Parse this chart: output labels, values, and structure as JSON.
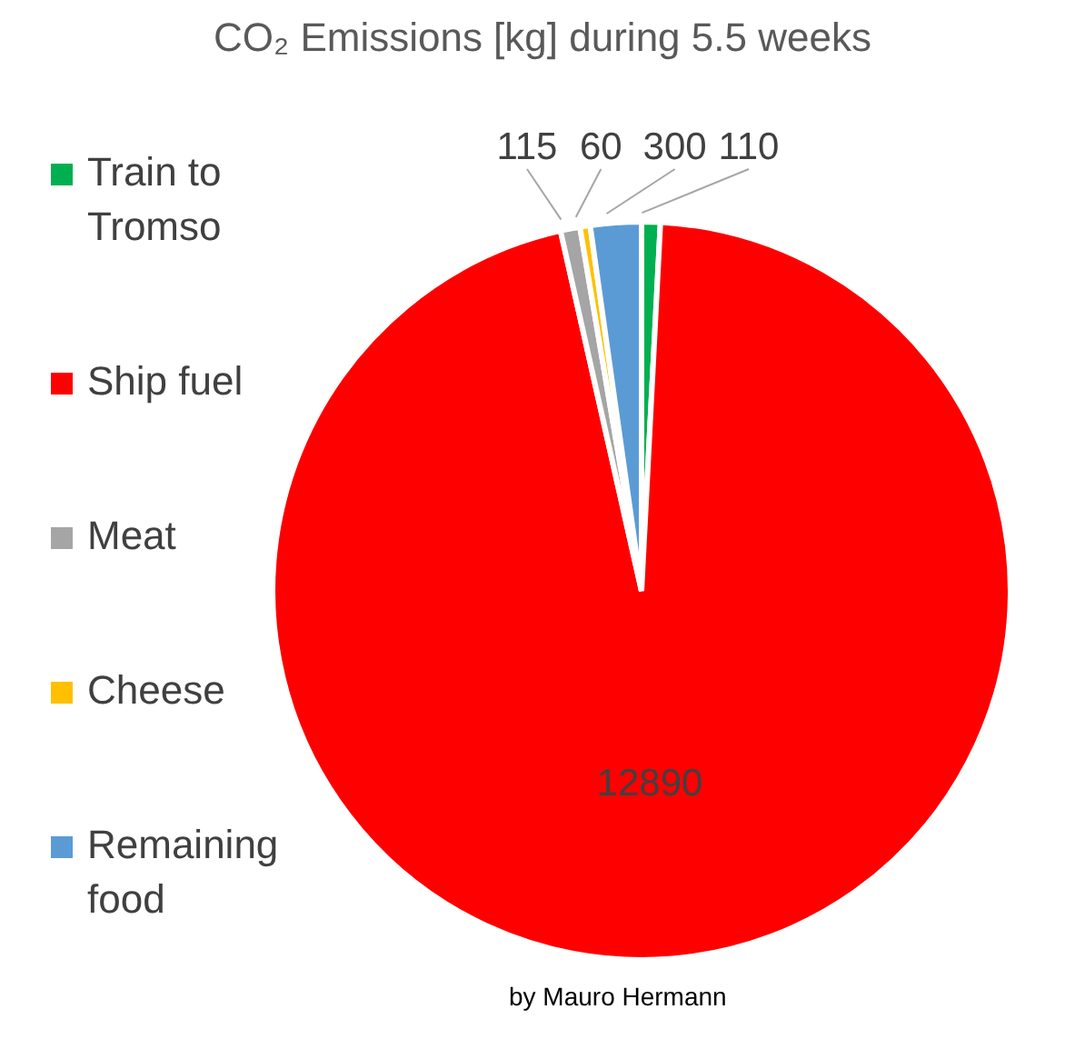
{
  "chart_data": {
    "type": "pie",
    "title": "CO₂ Emissions [kg] during 5.5 weeks",
    "categories": [
      "Train to Tromso",
      "Ship fuel",
      "Meat",
      "Cheese",
      "Remaining food"
    ],
    "values": [
      110,
      12890,
      115,
      60,
      300
    ],
    "colors": [
      "#00b050",
      "#ff0000",
      "#a5a5a5",
      "#ffc000",
      "#5b9bd5"
    ],
    "data_labels": true,
    "legend": "left",
    "annotations": [
      "by Mauro Hermann"
    ]
  }
}
